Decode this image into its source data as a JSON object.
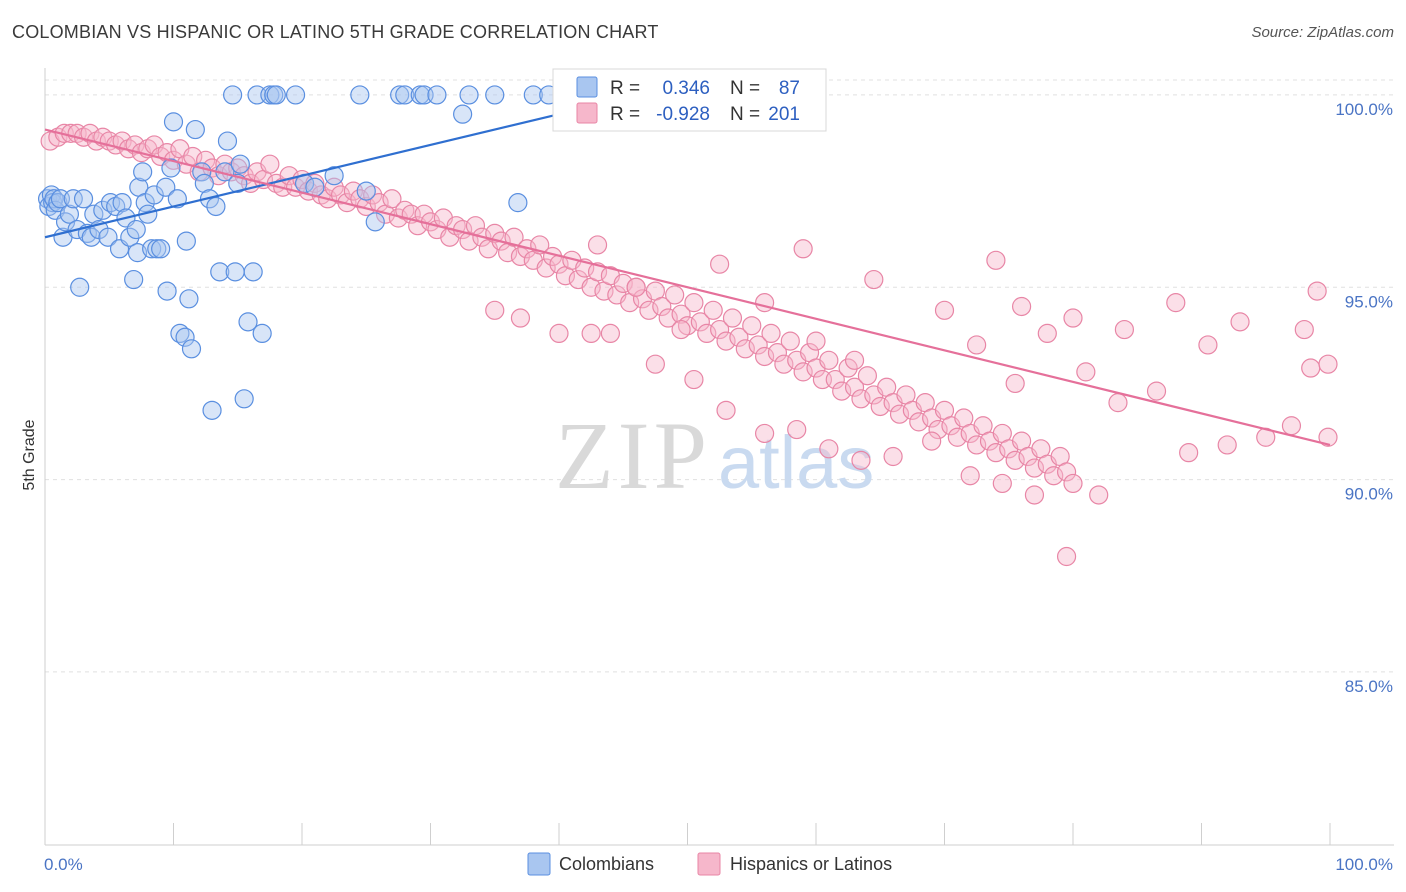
{
  "title": "COLOMBIAN VS HISPANIC OR LATINO 5TH GRADE CORRELATION CHART",
  "source": "Source: ZipAtlas.com",
  "watermark": {
    "zip": "ZIP",
    "atlas": "atlas"
  },
  "colors": {
    "blue_fill": "#a9c6f0",
    "blue_stroke": "#5a8fe0",
    "blue_line": "#2f6fd0",
    "pink_fill": "#f6b7cb",
    "pink_stroke": "#e886a6",
    "pink_line": "#e5709a",
    "grid": "#e0e0e0",
    "tick_label": "#4a74c4"
  },
  "legend": {
    "rows": [
      {
        "r_label": "R =",
        "r_value": "0.346",
        "n_label": "N =",
        "n_value": "87"
      },
      {
        "r_label": "R =",
        "r_value": "-0.928",
        "n_label": "N =",
        "n_value": "201"
      }
    ]
  },
  "bottom_legend": {
    "colombians": "Colombians",
    "hispanics": "Hispanics or Latinos"
  },
  "chart_data": {
    "type": "scatter",
    "title": "COLOMBIAN VS HISPANIC OR LATINO 5TH GRADE CORRELATION CHART",
    "xlabel": "",
    "ylabel": "5th Grade",
    "xlim": [
      0,
      100
    ],
    "ylim": [
      80.5,
      100.7
    ],
    "x_tick_labels": [
      "0.0%",
      "100.0%"
    ],
    "y_ticks": [
      {
        "value": 100,
        "label": "100.0%"
      },
      {
        "value": 95,
        "label": "95.0%"
      },
      {
        "value": 90,
        "label": "90.0%"
      },
      {
        "value": 85,
        "label": "85.0%"
      }
    ],
    "grid": "horizontal dashed",
    "legend_position": "top-center",
    "series": [
      {
        "name": "Colombians",
        "r": 0.346,
        "n": 87,
        "trend": {
          "x0": 0,
          "y0": 96.3,
          "x1": 40,
          "y1": 99.5
        },
        "points": [
          [
            0.2,
            97.3
          ],
          [
            0.3,
            97.1
          ],
          [
            0.5,
            97.4
          ],
          [
            0.6,
            97.2
          ],
          [
            0.7,
            97.3
          ],
          [
            0.8,
            97.0
          ],
          [
            1.0,
            97.2
          ],
          [
            1.2,
            97.3
          ],
          [
            1.4,
            96.3
          ],
          [
            1.6,
            96.7
          ],
          [
            1.9,
            96.9
          ],
          [
            2.2,
            97.3
          ],
          [
            2.5,
            96.5
          ],
          [
            2.7,
            95.0
          ],
          [
            3.0,
            97.3
          ],
          [
            3.3,
            96.4
          ],
          [
            3.6,
            96.3
          ],
          [
            3.8,
            96.9
          ],
          [
            4.2,
            96.5
          ],
          [
            4.5,
            97.0
          ],
          [
            4.9,
            96.3
          ],
          [
            5.1,
            97.2
          ],
          [
            5.5,
            97.1
          ],
          [
            5.8,
            96.0
          ],
          [
            6.0,
            97.2
          ],
          [
            6.3,
            96.8
          ],
          [
            6.6,
            96.3
          ],
          [
            6.9,
            95.2
          ],
          [
            7.1,
            96.5
          ],
          [
            7.2,
            95.9
          ],
          [
            7.3,
            97.6
          ],
          [
            7.8,
            97.2
          ],
          [
            7.6,
            98.0
          ],
          [
            8.0,
            96.9
          ],
          [
            8.3,
            96.0
          ],
          [
            8.5,
            97.4
          ],
          [
            8.7,
            96.0
          ],
          [
            9.0,
            96.0
          ],
          [
            9.4,
            97.6
          ],
          [
            9.5,
            94.9
          ],
          [
            9.8,
            98.1
          ],
          [
            10.0,
            99.3
          ],
          [
            10.3,
            97.3
          ],
          [
            10.5,
            93.8
          ],
          [
            10.9,
            93.7
          ],
          [
            11.0,
            96.2
          ],
          [
            11.2,
            94.7
          ],
          [
            11.4,
            93.4
          ],
          [
            11.7,
            99.1
          ],
          [
            12.2,
            98.0
          ],
          [
            12.4,
            97.7
          ],
          [
            12.8,
            97.3
          ],
          [
            13.0,
            91.8
          ],
          [
            13.3,
            97.1
          ],
          [
            13.6,
            95.4
          ],
          [
            14.0,
            98.0
          ],
          [
            14.2,
            98.8
          ],
          [
            14.6,
            100.0
          ],
          [
            14.8,
            95.4
          ],
          [
            15.0,
            97.7
          ],
          [
            15.2,
            98.2
          ],
          [
            15.5,
            92.1
          ],
          [
            15.8,
            94.1
          ],
          [
            16.2,
            95.4
          ],
          [
            16.5,
            100.0
          ],
          [
            16.9,
            93.8
          ],
          [
            17.5,
            100.0
          ],
          [
            17.8,
            100.0
          ],
          [
            18.0,
            100.0
          ],
          [
            19.5,
            100.0
          ],
          [
            20.2,
            97.7
          ],
          [
            21.0,
            97.6
          ],
          [
            22.5,
            97.9
          ],
          [
            24.5,
            100.0
          ],
          [
            25.0,
            97.5
          ],
          [
            25.7,
            96.7
          ],
          [
            27.6,
            100.0
          ],
          [
            28.0,
            100.0
          ],
          [
            29.2,
            100.0
          ],
          [
            29.5,
            100.0
          ],
          [
            30.5,
            100.0
          ],
          [
            32.5,
            99.5
          ],
          [
            33.0,
            100.0
          ],
          [
            35.0,
            100.0
          ],
          [
            36.8,
            97.2
          ],
          [
            38.0,
            100.0
          ],
          [
            39.2,
            100.0
          ]
        ]
      },
      {
        "name": "Hispanics or Latinos",
        "r": -0.928,
        "n": 201,
        "trend": {
          "x0": 0,
          "y0": 99.1,
          "x1": 100,
          "y1": 90.9
        },
        "points": [
          [
            0.4,
            98.8
          ],
          [
            1.0,
            98.9
          ],
          [
            1.5,
            99.0
          ],
          [
            2.0,
            99.0
          ],
          [
            2.5,
            99.0
          ],
          [
            3.0,
            98.9
          ],
          [
            3.5,
            99.0
          ],
          [
            4.0,
            98.8
          ],
          [
            4.5,
            98.9
          ],
          [
            5.0,
            98.8
          ],
          [
            5.5,
            98.7
          ],
          [
            6.0,
            98.8
          ],
          [
            6.5,
            98.6
          ],
          [
            7.0,
            98.7
          ],
          [
            7.5,
            98.5
          ],
          [
            8.0,
            98.6
          ],
          [
            8.5,
            98.7
          ],
          [
            9.0,
            98.4
          ],
          [
            9.5,
            98.5
          ],
          [
            10.0,
            98.3
          ],
          [
            10.5,
            98.6
          ],
          [
            11.0,
            98.2
          ],
          [
            11.5,
            98.4
          ],
          [
            12.0,
            98.0
          ],
          [
            12.5,
            98.3
          ],
          [
            13.0,
            98.1
          ],
          [
            13.5,
            97.9
          ],
          [
            14.0,
            98.2
          ],
          [
            14.5,
            98.0
          ],
          [
            15.0,
            98.1
          ],
          [
            15.5,
            97.9
          ],
          [
            16.0,
            97.7
          ],
          [
            16.5,
            98.0
          ],
          [
            17.0,
            97.8
          ],
          [
            17.5,
            98.2
          ],
          [
            18.0,
            97.7
          ],
          [
            18.5,
            97.6
          ],
          [
            19.0,
            97.9
          ],
          [
            19.5,
            97.6
          ],
          [
            20.0,
            97.8
          ],
          [
            20.5,
            97.5
          ],
          [
            21.0,
            97.7
          ],
          [
            21.5,
            97.4
          ],
          [
            22.0,
            97.3
          ],
          [
            22.5,
            97.6
          ],
          [
            23.0,
            97.4
          ],
          [
            23.5,
            97.2
          ],
          [
            24.0,
            97.5
          ],
          [
            24.5,
            97.3
          ],
          [
            25.0,
            97.1
          ],
          [
            25.5,
            97.4
          ],
          [
            26.0,
            97.2
          ],
          [
            26.5,
            96.9
          ],
          [
            27.0,
            97.3
          ],
          [
            27.5,
            96.8
          ],
          [
            28.0,
            97.0
          ],
          [
            28.5,
            96.9
          ],
          [
            29.0,
            96.6
          ],
          [
            29.5,
            96.9
          ],
          [
            30.0,
            96.7
          ],
          [
            30.5,
            96.5
          ],
          [
            31.0,
            96.8
          ],
          [
            31.5,
            96.3
          ],
          [
            32.0,
            96.6
          ],
          [
            32.5,
            96.5
          ],
          [
            33.0,
            96.2
          ],
          [
            33.5,
            96.6
          ],
          [
            34.0,
            96.3
          ],
          [
            34.5,
            96.0
          ],
          [
            35.0,
            96.4
          ],
          [
            35.5,
            96.2
          ],
          [
            36.0,
            95.9
          ],
          [
            36.5,
            96.3
          ],
          [
            37.0,
            95.8
          ],
          [
            37.5,
            96.0
          ],
          [
            38.0,
            95.7
          ],
          [
            38.5,
            96.1
          ],
          [
            39.0,
            95.5
          ],
          [
            39.5,
            95.8
          ],
          [
            40.0,
            95.6
          ],
          [
            40.5,
            95.3
          ],
          [
            41.0,
            95.7
          ],
          [
            41.5,
            95.2
          ],
          [
            42.0,
            95.5
          ],
          [
            42.5,
            95.0
          ],
          [
            43.0,
            95.4
          ],
          [
            43.5,
            94.9
          ],
          [
            44.0,
            95.3
          ],
          [
            44.5,
            94.8
          ],
          [
            45.0,
            95.1
          ],
          [
            45.5,
            94.6
          ],
          [
            46.0,
            95.0
          ],
          [
            46.5,
            94.7
          ],
          [
            47.0,
            94.4
          ],
          [
            47.5,
            94.9
          ],
          [
            48.0,
            94.5
          ],
          [
            48.5,
            94.2
          ],
          [
            49.0,
            94.8
          ],
          [
            49.5,
            94.3
          ],
          [
            50.0,
            94.0
          ],
          [
            50.5,
            94.6
          ],
          [
            51.0,
            94.1
          ],
          [
            51.5,
            93.8
          ],
          [
            52.0,
            94.4
          ],
          [
            52.5,
            93.9
          ],
          [
            53.0,
            93.6
          ],
          [
            53.5,
            94.2
          ],
          [
            54.0,
            93.7
          ],
          [
            54.5,
            93.4
          ],
          [
            55.0,
            94.0
          ],
          [
            55.5,
            93.5
          ],
          [
            56.0,
            93.2
          ],
          [
            56.5,
            93.8
          ],
          [
            57.0,
            93.3
          ],
          [
            57.5,
            93.0
          ],
          [
            58.0,
            93.6
          ],
          [
            58.5,
            93.1
          ],
          [
            59.0,
            92.8
          ],
          [
            59.5,
            93.3
          ],
          [
            60.0,
            92.9
          ],
          [
            60.5,
            92.6
          ],
          [
            61.0,
            93.1
          ],
          [
            61.5,
            92.6
          ],
          [
            62.0,
            92.3
          ],
          [
            62.5,
            92.9
          ],
          [
            63.0,
            92.4
          ],
          [
            63.5,
            92.1
          ],
          [
            64.0,
            92.7
          ],
          [
            64.5,
            92.2
          ],
          [
            65.0,
            91.9
          ],
          [
            65.5,
            92.4
          ],
          [
            66.0,
            92.0
          ],
          [
            66.5,
            91.7
          ],
          [
            67.0,
            92.2
          ],
          [
            67.5,
            91.8
          ],
          [
            68.0,
            91.5
          ],
          [
            68.5,
            92.0
          ],
          [
            69.0,
            91.6
          ],
          [
            69.5,
            91.3
          ],
          [
            70.0,
            91.8
          ],
          [
            70.5,
            91.4
          ],
          [
            71.0,
            91.1
          ],
          [
            71.5,
            91.6
          ],
          [
            72.0,
            91.2
          ],
          [
            72.5,
            90.9
          ],
          [
            73.0,
            91.4
          ],
          [
            73.5,
            91.0
          ],
          [
            74.0,
            90.7
          ],
          [
            74.5,
            91.2
          ],
          [
            75.0,
            90.8
          ],
          [
            75.5,
            90.5
          ],
          [
            76.0,
            91.0
          ],
          [
            76.5,
            90.6
          ],
          [
            77.0,
            90.3
          ],
          [
            77.5,
            90.8
          ],
          [
            78.0,
            90.4
          ],
          [
            78.5,
            90.1
          ],
          [
            79.0,
            90.6
          ],
          [
            79.5,
            90.2
          ],
          [
            80.0,
            89.9
          ],
          [
            44.0,
            93.8
          ],
          [
            47.5,
            93.0
          ],
          [
            50.5,
            92.6
          ],
          [
            53.0,
            91.8
          ],
          [
            56.0,
            91.2
          ],
          [
            58.5,
            91.3
          ],
          [
            61.0,
            90.8
          ],
          [
            63.5,
            90.5
          ],
          [
            66.0,
            90.6
          ],
          [
            69.0,
            91.0
          ],
          [
            72.0,
            90.1
          ],
          [
            74.5,
            89.9
          ],
          [
            77.0,
            89.6
          ],
          [
            79.5,
            88.0
          ],
          [
            82.0,
            89.6
          ],
          [
            59.0,
            96.0
          ],
          [
            64.5,
            95.2
          ],
          [
            70.0,
            94.4
          ],
          [
            74.0,
            95.7
          ],
          [
            76.0,
            94.5
          ],
          [
            80.0,
            94.2
          ],
          [
            84.0,
            93.9
          ],
          [
            88.0,
            94.6
          ],
          [
            90.5,
            93.5
          ],
          [
            93.0,
            94.1
          ],
          [
            98.0,
            93.9
          ],
          [
            98.5,
            92.9
          ],
          [
            101.0,
            93.0
          ],
          [
            100.5,
            91.1
          ],
          [
            99.0,
            94.9
          ],
          [
            95.0,
            91.1
          ],
          [
            97.0,
            91.4
          ],
          [
            92.0,
            90.9
          ],
          [
            89.0,
            90.7
          ],
          [
            86.5,
            92.3
          ],
          [
            83.5,
            92.0
          ],
          [
            81.0,
            92.8
          ],
          [
            78.0,
            93.8
          ],
          [
            75.5,
            92.5
          ],
          [
            72.5,
            93.5
          ],
          [
            35.0,
            94.4
          ],
          [
            37.0,
            94.2
          ],
          [
            40.0,
            93.8
          ],
          [
            42.5,
            93.8
          ],
          [
            43.0,
            96.1
          ],
          [
            46.0,
            95.0
          ],
          [
            49.5,
            93.9
          ],
          [
            52.5,
            95.6
          ],
          [
            56.0,
            94.6
          ],
          [
            60.0,
            93.6
          ],
          [
            63.0,
            93.1
          ]
        ]
      }
    ]
  }
}
